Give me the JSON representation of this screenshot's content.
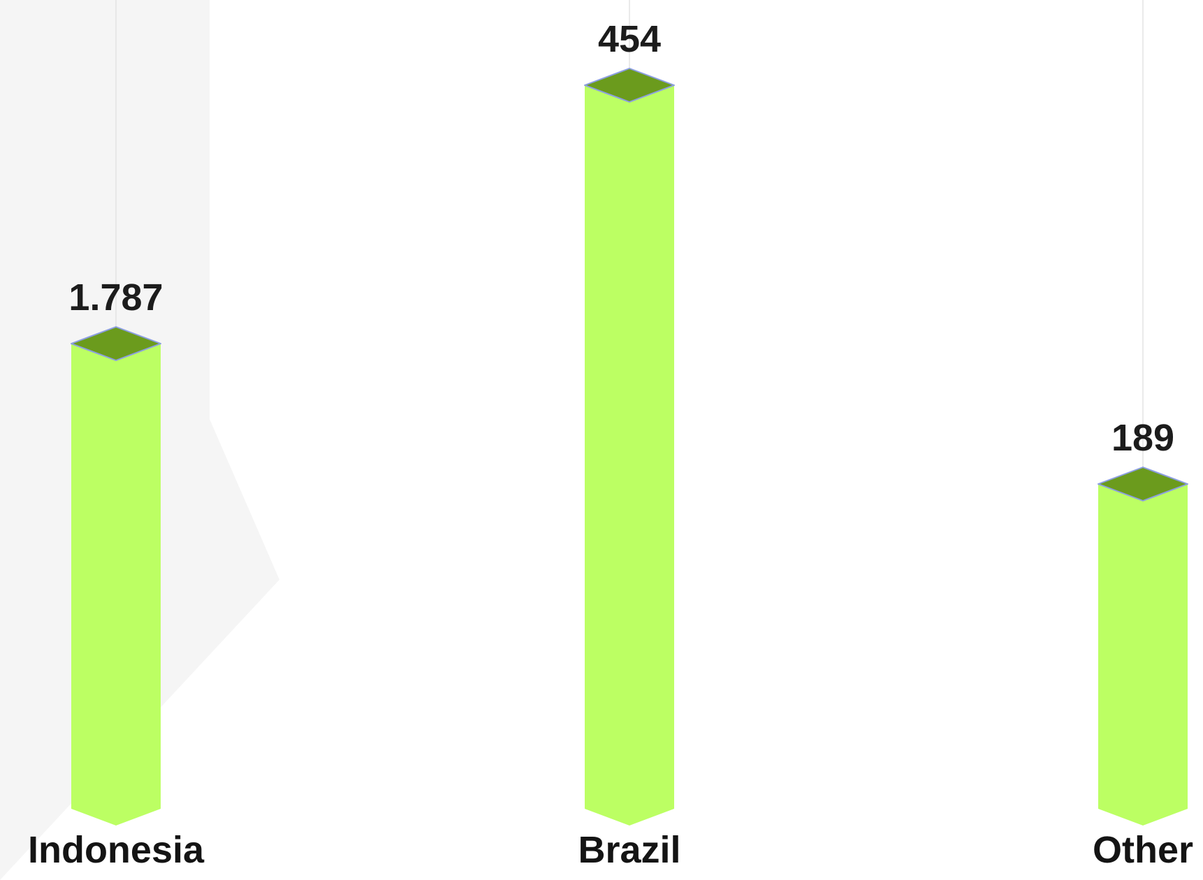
{
  "chart_data": {
    "type": "bar",
    "categories": [
      "Indonesia",
      "Brazil",
      "Other"
    ],
    "values": [
      1787,
      454,
      189
    ],
    "value_labels": [
      "1.787",
      "454",
      "189"
    ],
    "title": "",
    "xlabel": "",
    "ylabel": "",
    "grid": false,
    "legend": "none",
    "colors": {
      "bar_face": "#bcff63",
      "bar_top": "#6b9b1d",
      "bar_top_edge": "#8c9ee0",
      "guide_line": "#e3e3e3",
      "background_shape": "#f5f5f5",
      "label_text": "#141414"
    }
  }
}
